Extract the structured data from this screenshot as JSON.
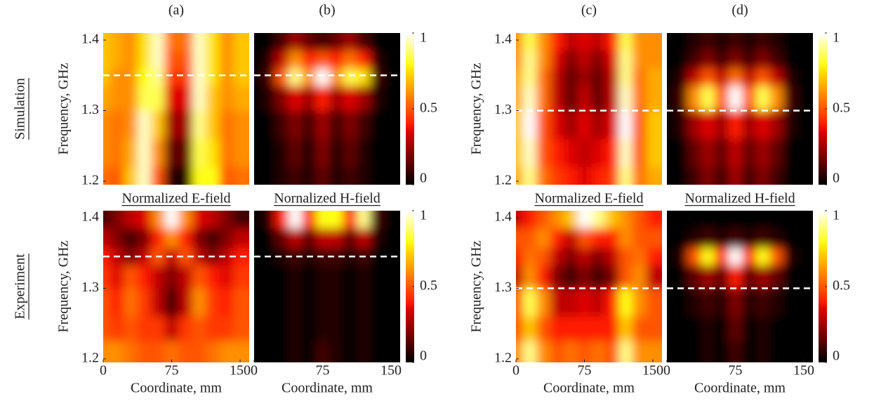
{
  "column_labels": [
    "(a)",
    "(b)",
    "(c)",
    "(d)"
  ],
  "row_labels": [
    "Simulation",
    "Experiment"
  ],
  "chart_data": [
    {
      "type": "heatmap",
      "ylabel": "Frequency, GHz",
      "yticks": [
        1.2,
        1.3,
        1.4
      ],
      "caption": "Normalized E-field",
      "xlim": [
        0,
        160
      ],
      "ylim": [
        1.195,
        1.41
      ],
      "hline": 1.35,
      "x": [
        0,
        15,
        30,
        45,
        60,
        75,
        90,
        105,
        120,
        135,
        150
      ],
      "y": [
        1.4,
        1.37,
        1.35,
        1.32,
        1.28,
        1.24,
        1.2
      ],
      "z": [
        [
          0.7,
          0.65,
          0.6,
          0.75,
          0.95,
          0.55,
          0.55,
          0.95,
          0.75,
          0.6,
          0.7
        ],
        [
          0.7,
          0.65,
          0.6,
          0.75,
          0.95,
          0.5,
          0.5,
          0.95,
          0.75,
          0.6,
          0.7
        ],
        [
          0.7,
          0.6,
          0.6,
          0.8,
          0.9,
          0.45,
          0.45,
          0.95,
          0.75,
          0.6,
          0.7
        ],
        [
          0.65,
          0.6,
          0.6,
          0.85,
          0.85,
          0.35,
          0.35,
          0.95,
          0.7,
          0.6,
          0.65
        ],
        [
          0.6,
          0.55,
          0.6,
          0.95,
          0.7,
          0.25,
          0.25,
          0.9,
          0.7,
          0.55,
          0.6
        ],
        [
          0.6,
          0.55,
          0.65,
          0.95,
          0.6,
          0.15,
          0.15,
          0.85,
          0.75,
          0.55,
          0.6
        ],
        [
          0.55,
          0.5,
          0.7,
          0.95,
          0.5,
          0.05,
          0.05,
          0.8,
          0.8,
          0.5,
          0.55
        ]
      ]
    },
    {
      "type": "heatmap",
      "caption": "Nornalized H-field",
      "colorbar": {
        "lim": [
          0,
          1
        ],
        "ticks": [
          0,
          0.5,
          1
        ]
      },
      "xlim": [
        0,
        160
      ],
      "ylim": [
        1.195,
        1.41
      ],
      "hline": 1.35,
      "x": [
        0,
        15,
        30,
        45,
        60,
        75,
        90,
        105,
        120,
        135,
        150
      ],
      "y": [
        1.4,
        1.37,
        1.35,
        1.32,
        1.28,
        1.24,
        1.2
      ],
      "z": [
        [
          0,
          0,
          0.1,
          0.25,
          0.15,
          0.1,
          0.15,
          0.25,
          0.1,
          0,
          0
        ],
        [
          0,
          0.05,
          0.3,
          0.6,
          0.4,
          0.5,
          0.4,
          0.55,
          0.4,
          0.05,
          0
        ],
        [
          0,
          0.1,
          0.5,
          0.9,
          0.6,
          1,
          0.6,
          0.85,
          0.75,
          0.1,
          0
        ],
        [
          0,
          0.05,
          0.2,
          0.35,
          0.25,
          0.4,
          0.25,
          0.35,
          0.25,
          0.05,
          0
        ],
        [
          0,
          0,
          0.1,
          0.2,
          0.1,
          0.25,
          0.1,
          0.2,
          0.1,
          0,
          0
        ],
        [
          0,
          0,
          0.05,
          0.15,
          0.05,
          0.2,
          0.05,
          0.15,
          0.05,
          0,
          0
        ],
        [
          0,
          0,
          0.05,
          0.1,
          0.05,
          0.15,
          0.05,
          0.1,
          0.05,
          0,
          0
        ]
      ]
    },
    {
      "type": "heatmap",
      "ylabel": "Frequency, GHz",
      "yticks": [
        1.2,
        1.3,
        1.4
      ],
      "caption": "Normalized E-field",
      "xlim": [
        0,
        160
      ],
      "ylim": [
        1.195,
        1.41
      ],
      "hline": 1.3,
      "x": [
        0,
        15,
        30,
        45,
        60,
        75,
        90,
        105,
        120,
        135,
        150
      ],
      "y": [
        1.4,
        1.37,
        1.35,
        1.32,
        1.28,
        1.24,
        1.2
      ],
      "z": [
        [
          0.6,
          0.85,
          0.6,
          0.4,
          0.3,
          0.35,
          0.3,
          0.4,
          0.85,
          0.6,
          0.6
        ],
        [
          0.6,
          0.9,
          0.6,
          0.35,
          0.2,
          0.3,
          0.2,
          0.35,
          0.9,
          0.6,
          0.6
        ],
        [
          0.65,
          0.9,
          0.55,
          0.3,
          0.15,
          0.25,
          0.15,
          0.3,
          0.9,
          0.55,
          0.65
        ],
        [
          0.65,
          0.95,
          0.55,
          0.3,
          0.15,
          0.3,
          0.15,
          0.3,
          0.95,
          0.55,
          0.65
        ],
        [
          0.7,
          1,
          0.5,
          0.35,
          0.25,
          0.35,
          0.25,
          0.35,
          1,
          0.5,
          0.7
        ],
        [
          0.7,
          0.95,
          0.5,
          0.4,
          0.35,
          0.3,
          0.35,
          0.4,
          0.95,
          0.5,
          0.7
        ],
        [
          0.65,
          0.9,
          0.55,
          0.45,
          0.4,
          0.35,
          0.4,
          0.45,
          0.9,
          0.55,
          0.65
        ]
      ]
    },
    {
      "type": "heatmap",
      "caption": "Normalized H-field",
      "colorbar": {
        "lim": [
          0,
          1
        ],
        "ticks": [
          0,
          0.5,
          1
        ]
      },
      "xlim": [
        0,
        160
      ],
      "ylim": [
        1.195,
        1.41
      ],
      "hline": 1.3,
      "x": [
        0,
        15,
        30,
        45,
        60,
        75,
        90,
        105,
        120,
        135,
        150
      ],
      "y": [
        1.4,
        1.37,
        1.35,
        1.32,
        1.28,
        1.24,
        1.2
      ],
      "z": [
        [
          0,
          0,
          0.05,
          0.1,
          0.05,
          0.1,
          0.05,
          0.1,
          0.05,
          0,
          0
        ],
        [
          0,
          0,
          0.1,
          0.2,
          0.1,
          0.2,
          0.1,
          0.2,
          0.1,
          0,
          0
        ],
        [
          0,
          0.05,
          0.3,
          0.5,
          0.3,
          0.55,
          0.3,
          0.5,
          0.3,
          0.05,
          0
        ],
        [
          0,
          0.1,
          0.6,
          0.85,
          0.5,
          1,
          0.5,
          0.85,
          0.6,
          0.1,
          0
        ],
        [
          0,
          0.05,
          0.25,
          0.35,
          0.25,
          0.4,
          0.25,
          0.35,
          0.25,
          0.05,
          0
        ],
        [
          0,
          0,
          0.15,
          0.25,
          0.15,
          0.3,
          0.15,
          0.25,
          0.15,
          0,
          0
        ],
        [
          0,
          0,
          0.1,
          0.2,
          0.1,
          0.25,
          0.1,
          0.2,
          0.1,
          0,
          0
        ]
      ]
    },
    {
      "type": "heatmap",
      "ylabel": "Frequency, GHz",
      "yticks": [
        1.2,
        1.3,
        1.4
      ],
      "xlabel": "Coordinate, mm",
      "xticks": [
        0,
        75,
        150
      ],
      "xlim": [
        0,
        160
      ],
      "ylim": [
        1.195,
        1.41
      ],
      "hline": 1.345,
      "x": [
        0,
        15,
        30,
        45,
        60,
        75,
        90,
        105,
        120,
        135,
        150
      ],
      "y": [
        1.4,
        1.37,
        1.345,
        1.32,
        1.28,
        1.24,
        1.21
      ],
      "z": [
        [
          0.1,
          0.2,
          0.3,
          0.35,
          0.6,
          1,
          0.6,
          0.35,
          0.3,
          0.2,
          0.1
        ],
        [
          0.3,
          0.2,
          0.1,
          0.2,
          0.4,
          0.6,
          0.4,
          0.2,
          0.1,
          0.2,
          0.3
        ],
        [
          0.4,
          0.3,
          0.2,
          0.3,
          0.5,
          0.3,
          0.5,
          0.3,
          0.2,
          0.3,
          0.4
        ],
        [
          0.45,
          0.35,
          0.5,
          0.4,
          0.3,
          0.2,
          0.3,
          0.5,
          0.4,
          0.35,
          0.45
        ],
        [
          0.5,
          0.4,
          0.55,
          0.45,
          0.3,
          0.1,
          0.3,
          0.6,
          0.45,
          0.4,
          0.5
        ],
        [
          0.5,
          0.45,
          0.5,
          0.45,
          0.45,
          0.3,
          0.45,
          0.5,
          0.45,
          0.45,
          0.5
        ],
        [
          0.6,
          0.6,
          0.55,
          0.5,
          0.5,
          0.55,
          0.5,
          0.5,
          0.55,
          0.6,
          0.6
        ]
      ]
    },
    {
      "type": "heatmap",
      "xlabel": "Coordinate, mm",
      "xticks": [
        0,
        75,
        150
      ],
      "colorbar": {
        "lim": [
          0,
          1
        ],
        "ticks": [
          0,
          0.5,
          1
        ]
      },
      "xlim": [
        0,
        160
      ],
      "ylim": [
        1.195,
        1.41
      ],
      "hline": 1.345,
      "x": [
        0,
        15,
        30,
        45,
        60,
        75,
        90,
        105,
        120,
        135,
        150
      ],
      "y": [
        1.4,
        1.37,
        1.345,
        1.32,
        1.28,
        1.24,
        1.21
      ],
      "z": [
        [
          0,
          0.05,
          0.4,
          1,
          0.4,
          0.8,
          0.8,
          0.4,
          0.9,
          0.1,
          0
        ],
        [
          0,
          0,
          0.15,
          0.3,
          0.15,
          0.3,
          0.3,
          0.15,
          0.3,
          0.05,
          0
        ],
        [
          0,
          0,
          0.05,
          0.1,
          0.05,
          0.1,
          0.1,
          0.05,
          0.1,
          0,
          0
        ],
        [
          0,
          0,
          0,
          0.05,
          0,
          0.05,
          0.05,
          0,
          0.05,
          0,
          0
        ],
        [
          0,
          0,
          0,
          0.05,
          0,
          0.05,
          0.05,
          0,
          0.05,
          0,
          0
        ],
        [
          0,
          0,
          0,
          0.05,
          0,
          0.05,
          0.05,
          0,
          0.05,
          0,
          0
        ],
        [
          0,
          0,
          0,
          0.05,
          0,
          0.1,
          0.05,
          0,
          0.05,
          0,
          0
        ]
      ]
    },
    {
      "type": "heatmap",
      "ylabel": "Frequency, GHz",
      "yticks": [
        1.2,
        1.3,
        1.4
      ],
      "xlabel": "Coordinate, mm",
      "xticks": [
        0,
        75,
        150
      ],
      "xlim": [
        0,
        160
      ],
      "ylim": [
        1.195,
        1.41
      ],
      "hline": 1.3,
      "x": [
        0,
        15,
        30,
        45,
        60,
        75,
        90,
        105,
        120,
        135,
        150
      ],
      "y": [
        1.4,
        1.37,
        1.345,
        1.32,
        1.28,
        1.24,
        1.21
      ],
      "z": [
        [
          0.3,
          0.4,
          0.5,
          0.6,
          0.7,
          1,
          0.9,
          0.7,
          0.6,
          0.5,
          0.4
        ],
        [
          0.5,
          0.5,
          0.6,
          0.4,
          0.3,
          0.5,
          0.4,
          0.4,
          0.6,
          0.5,
          0.5
        ],
        [
          0.4,
          0.55,
          0.5,
          0.3,
          0.2,
          0.3,
          0.2,
          0.3,
          0.5,
          0.55,
          0.4
        ],
        [
          0.3,
          0.6,
          0.4,
          0.2,
          0.1,
          0.2,
          0.1,
          0.2,
          0.5,
          0.6,
          0.3
        ],
        [
          0.5,
          0.85,
          0.6,
          0.3,
          0.3,
          0.35,
          0.3,
          0.4,
          0.8,
          0.6,
          0.5
        ],
        [
          0.5,
          0.7,
          0.5,
          0.4,
          0.4,
          0.4,
          0.4,
          0.4,
          0.7,
          0.5,
          0.5
        ],
        [
          0.6,
          0.9,
          0.6,
          0.5,
          0.55,
          0.5,
          0.55,
          0.5,
          0.9,
          0.6,
          0.6
        ]
      ]
    },
    {
      "type": "heatmap",
      "xlabel": "Coordinate, mm",
      "xticks": [
        0,
        75,
        150
      ],
      "colorbar": {
        "lim": [
          0,
          1
        ],
        "ticks": [
          0,
          0.5,
          1
        ]
      },
      "xlim": [
        0,
        160
      ],
      "ylim": [
        1.195,
        1.41
      ],
      "hline": 1.3,
      "x": [
        0,
        15,
        30,
        45,
        60,
        75,
        90,
        105,
        120,
        135,
        150
      ],
      "y": [
        1.4,
        1.37,
        1.345,
        1.32,
        1.28,
        1.24,
        1.21
      ],
      "z": [
        [
          0,
          0,
          0,
          0,
          0,
          0,
          0,
          0,
          0,
          0,
          0
        ],
        [
          0,
          0,
          0.05,
          0.1,
          0.05,
          0.1,
          0.05,
          0.1,
          0.05,
          0,
          0
        ],
        [
          0,
          0.05,
          0.5,
          0.8,
          0.4,
          1,
          0.4,
          0.8,
          0.5,
          0.05,
          0
        ],
        [
          0,
          0,
          0.15,
          0.25,
          0.15,
          0.4,
          0.15,
          0.25,
          0.15,
          0,
          0
        ],
        [
          0,
          0,
          0.05,
          0.1,
          0.05,
          0.2,
          0.05,
          0.1,
          0.05,
          0,
          0
        ],
        [
          0,
          0,
          0,
          0.05,
          0,
          0.15,
          0,
          0.05,
          0,
          0,
          0
        ],
        [
          0,
          0,
          0,
          0.05,
          0,
          0.1,
          0,
          0.05,
          0,
          0,
          0
        ]
      ]
    }
  ]
}
